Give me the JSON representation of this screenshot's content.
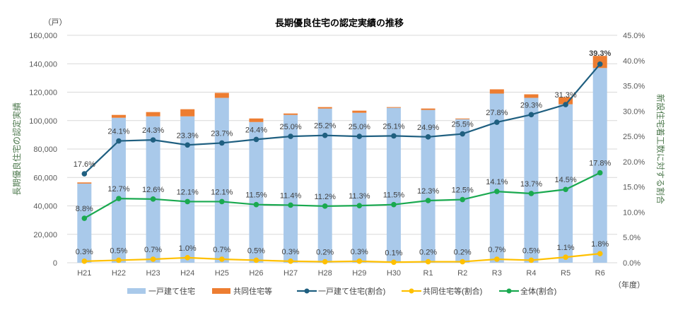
{
  "chart_data": {
    "type": "bar",
    "title": "長期優良住宅の認定実績の推移",
    "y_unit": "（戸）",
    "x_unit": "（年度）",
    "ylabel_left": "長期優良住宅の認定実績",
    "ylabel_right": "新設住宅着工数に対する割合",
    "ylim_left": [
      0,
      160000
    ],
    "ylim_right": [
      0,
      45
    ],
    "yticks_left": [
      "0",
      "20,000",
      "40,000",
      "60,000",
      "80,000",
      "100,000",
      "120,000",
      "140,000",
      "160,000"
    ],
    "yticks_right": [
      "0.0%",
      "5.0%",
      "10.0%",
      "15.0%",
      "20.0%",
      "25.0%",
      "30.0%",
      "35.0%",
      "40.0%",
      "45.0%"
    ],
    "grid": true,
    "legend_position": "bottom",
    "categories": [
      "H21",
      "H22",
      "H23",
      "H24",
      "H25",
      "H26",
      "H27",
      "H28",
      "H29",
      "H30",
      "R1",
      "R2",
      "R3",
      "R4",
      "R5",
      "R6"
    ],
    "bar_series": [
      {
        "name": "一戸建て住宅",
        "color": "#a9c9ea",
        "values": [
          55700,
          102000,
          103000,
          103000,
          116000,
          99000,
          104000,
          108500,
          105500,
          109000,
          107500,
          101000,
          119000,
          116000,
          111500,
          137000
        ]
      },
      {
        "name": "共同住宅等",
        "color": "#ed7d31",
        "values": [
          800,
          2000,
          3000,
          5000,
          3500,
          2500,
          1000,
          1000,
          1500,
          500,
          1000,
          500,
          3000,
          2500,
          5000,
          8500
        ]
      }
    ],
    "line_series": [
      {
        "name": "一戸建て住宅(割合)",
        "color": "#1f5f80",
        "values": [
          17.6,
          24.1,
          24.3,
          23.3,
          23.7,
          24.4,
          25.0,
          25.2,
          25.0,
          25.1,
          24.9,
          25.5,
          27.8,
          29.3,
          31.3,
          39.3
        ],
        "labels": [
          "17.6%",
          "24.1%",
          "24.3%",
          "23.3%",
          "23.7%",
          "24.4%",
          "25.0%",
          "25.2%",
          "25.0%",
          "25.1%",
          "24.9%",
          "25.5%",
          "27.8%",
          "29.3%",
          "31.3%",
          "39.3%"
        ]
      },
      {
        "name": "共同住宅等(割合)",
        "color": "#ffc000",
        "values": [
          0.3,
          0.5,
          0.7,
          1.0,
          0.7,
          0.5,
          0.3,
          0.2,
          0.3,
          0.1,
          0.2,
          0.2,
          0.7,
          0.5,
          1.1,
          1.8
        ],
        "labels": [
          "0.3%",
          "0.5%",
          "0.7%",
          "1.0%",
          "0.7%",
          "0.5%",
          "0.3%",
          "0.2%",
          "0.3%",
          "0.1%",
          "0.2%",
          "0.2%",
          "0.7%",
          "0.5%",
          "1.1%",
          "1.8%"
        ]
      },
      {
        "name": "全体(割合)",
        "color": "#1aa950",
        "values": [
          8.8,
          12.7,
          12.6,
          12.1,
          12.1,
          11.5,
          11.4,
          11.2,
          11.3,
          11.5,
          12.3,
          12.5,
          14.1,
          13.7,
          14.5,
          17.8
        ],
        "labels": [
          "8.8%",
          "12.7%",
          "12.6%",
          "12.1%",
          "12.1%",
          "11.5%",
          "11.4%",
          "11.2%",
          "11.3%",
          "11.5%",
          "12.3%",
          "12.5%",
          "14.1%",
          "13.7%",
          "14.5%",
          "17.8%"
        ]
      }
    ],
    "axis_title_color": "#4f7a4f"
  }
}
